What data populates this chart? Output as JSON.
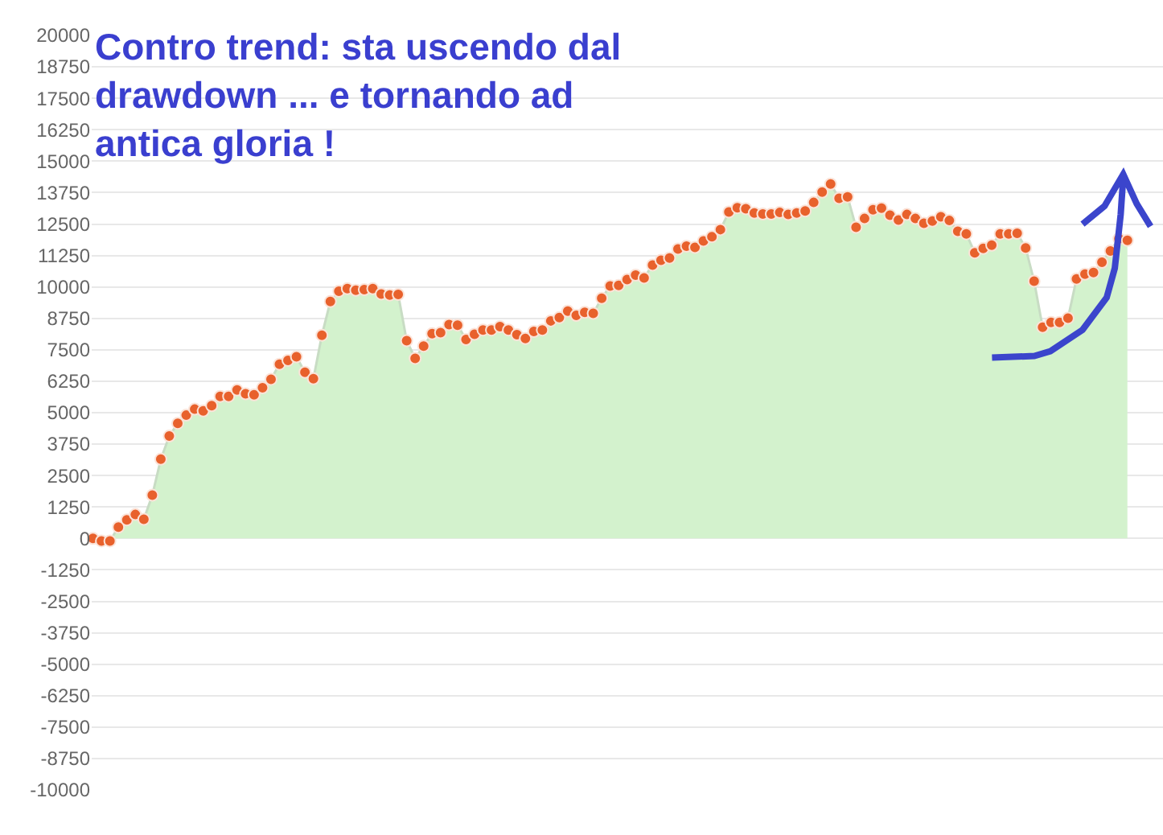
{
  "chart_data": {
    "type": "area",
    "title": "Contro trend: sta uscendo dal drawdown ... e tornando ad antica gloria !",
    "categories": [
      null,
      null,
      null,
      null,
      null,
      null,
      null,
      null,
      null,
      null,
      null,
      null,
      null,
      null,
      null,
      null,
      null,
      null,
      null,
      null,
      null,
      null,
      null,
      null,
      null,
      null,
      null,
      null,
      null,
      null,
      null,
      null,
      null,
      null,
      null,
      null,
      null,
      null,
      null,
      null,
      null,
      null,
      null,
      null,
      null,
      null,
      null,
      null,
      null,
      null,
      null,
      null,
      null,
      null,
      null,
      null,
      null,
      null,
      null,
      null,
      null,
      null,
      null,
      null,
      null,
      null,
      null,
      null,
      null,
      null,
      null,
      null,
      null,
      null,
      null,
      null,
      null,
      null,
      null,
      null,
      null,
      null,
      null,
      null,
      null,
      null,
      null,
      null,
      null,
      null,
      null,
      null,
      null,
      null,
      null,
      null,
      null,
      null,
      null,
      null,
      null,
      null,
      null,
      null,
      null,
      null,
      null,
      null,
      null,
      null,
      null,
      null,
      null,
      null,
      null,
      null,
      null,
      null,
      null,
      null,
      null,
      null,
      null
    ],
    "series": [
      {
        "color": "#e8612c",
        "values": [
          0,
          -100,
          -100,
          450,
          740,
          950,
          760,
          1720,
          3150,
          4070,
          4580,
          4900,
          5140,
          5070,
          5280,
          5650,
          5650,
          5900,
          5750,
          5710,
          5990,
          6330,
          6930,
          7080,
          7220,
          6610,
          6350,
          8080,
          9420,
          9830,
          9930,
          9870,
          9890,
          9930,
          9720,
          9680,
          9700,
          7860,
          7160,
          7650,
          8140,
          8180,
          8500,
          8480,
          7910,
          8120,
          8290,
          8290,
          8420,
          8290,
          8100,
          7950,
          8230,
          8290,
          8650,
          8780,
          9040,
          8870,
          8990,
          8950,
          9550,
          10040,
          10060,
          10290,
          10470,
          10360,
          10870,
          11060,
          11150,
          11510,
          11620,
          11570,
          11830,
          12000,
          12280,
          12980,
          13150,
          13110,
          12940,
          12900,
          12900,
          12960,
          12880,
          12940,
          13020,
          13360,
          13770,
          14090,
          13520,
          13580,
          12370,
          12720,
          13070,
          13130,
          12850,
          12660,
          12880,
          12720,
          12530,
          12620,
          12790,
          12640,
          12210,
          12110,
          11360,
          11530,
          11660,
          12110,
          12110,
          12130,
          11550,
          10230,
          8400,
          8590,
          8590,
          8760,
          10320,
          10510,
          10570,
          10980,
          11430,
          11920,
          11850
        ]
      }
    ],
    "ylim": [
      -10000,
      20000
    ],
    "yticks": [
      -10000,
      -8750,
      -7500,
      -6250,
      -5000,
      -3750,
      -2500,
      -1250,
      0,
      1250,
      2500,
      3750,
      5000,
      6250,
      7500,
      8750,
      10000,
      11250,
      12500,
      13750,
      15000,
      16250,
      17500,
      18750,
      20000
    ],
    "grid": "y",
    "marker": "circle",
    "tick_labels": "y"
  }
}
